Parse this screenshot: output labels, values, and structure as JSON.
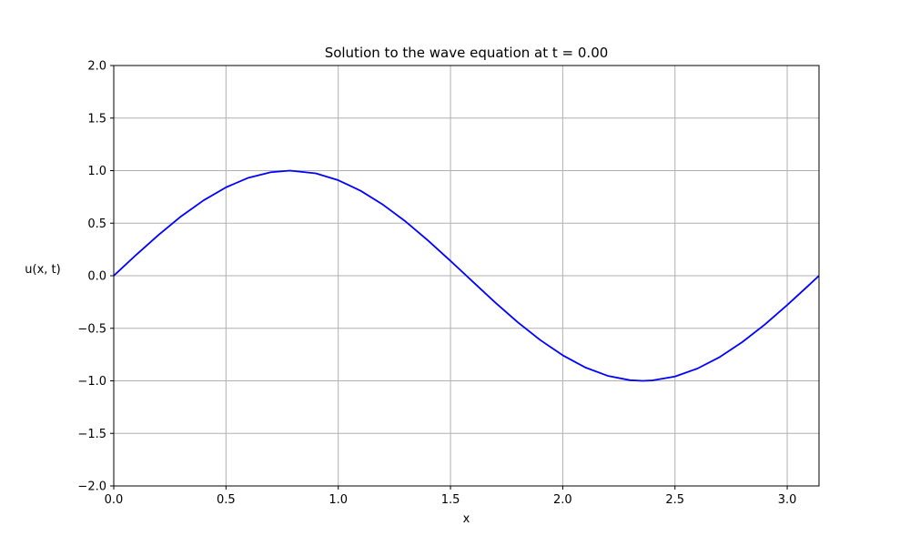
{
  "chart_data": {
    "type": "line",
    "title": "Solution to the wave equation at t = 0.00",
    "xlabel": "x",
    "ylabel": "u(x, t)",
    "xlim": [
      0,
      3.14159
    ],
    "ylim": [
      -2.0,
      2.0
    ],
    "xticks": [
      0.0,
      0.5,
      1.0,
      1.5,
      2.0,
      2.5,
      3.0
    ],
    "xtick_labels": [
      "0.0",
      "0.5",
      "1.0",
      "1.5",
      "2.0",
      "2.5",
      "3.0"
    ],
    "yticks": [
      -2.0,
      -1.5,
      -1.0,
      -0.5,
      0.0,
      0.5,
      1.0,
      1.5,
      2.0
    ],
    "ytick_labels": [
      "−2.0",
      "−1.5",
      "−1.0",
      "−0.5",
      "0.0",
      "0.5",
      "1.0",
      "1.5",
      "2.0"
    ],
    "grid": true,
    "series": [
      {
        "color": "#0000ff",
        "x": [
          0.0,
          0.1,
          0.2,
          0.3,
          0.4,
          0.5,
          0.6,
          0.7,
          0.785,
          0.9,
          1.0,
          1.1,
          1.2,
          1.3,
          1.4,
          1.5,
          1.571,
          1.6,
          1.7,
          1.8,
          1.9,
          2.0,
          2.1,
          2.2,
          2.3,
          2.356,
          2.4,
          2.5,
          2.6,
          2.7,
          2.8,
          2.9,
          3.0,
          3.1,
          3.14159
        ],
        "y": [
          0.0,
          0.199,
          0.389,
          0.565,
          0.717,
          0.841,
          0.932,
          0.985,
          1.0,
          0.974,
          0.909,
          0.808,
          0.675,
          0.516,
          0.335,
          0.141,
          0.0,
          -0.058,
          -0.256,
          -0.443,
          -0.612,
          -0.757,
          -0.872,
          -0.952,
          -0.994,
          -1.0,
          -0.996,
          -0.959,
          -0.883,
          -0.773,
          -0.631,
          -0.465,
          -0.279,
          -0.083,
          0.0
        ]
      }
    ]
  }
}
